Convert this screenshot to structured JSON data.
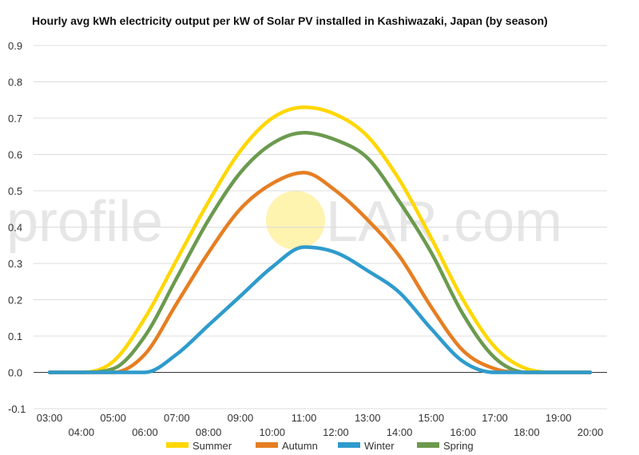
{
  "chart_data": {
    "type": "line",
    "title": "Hourly avg kWh electricity output per kW of Solar PV installed in Kashiwazaki, Japan (by season)",
    "xlabel": "",
    "ylabel": "",
    "x": [
      "03:00",
      "04:00",
      "05:00",
      "06:00",
      "07:00",
      "08:00",
      "09:00",
      "10:00",
      "11:00",
      "12:00",
      "13:00",
      "14:00",
      "15:00",
      "16:00",
      "17:00",
      "18:00",
      "19:00",
      "20:00"
    ],
    "ylim": [
      -0.1,
      0.9
    ],
    "yticks": [
      "-0.1",
      "0.0",
      "0.1",
      "0.2",
      "0.3",
      "0.4",
      "0.5",
      "0.6",
      "0.7",
      "0.8",
      "0.9"
    ],
    "grid": true,
    "legend_position": "bottom",
    "series": [
      {
        "name": "Summer",
        "color": "#FFD700",
        "values": [
          0.0,
          0.0,
          0.03,
          0.15,
          0.31,
          0.47,
          0.61,
          0.7,
          0.73,
          0.71,
          0.65,
          0.53,
          0.37,
          0.2,
          0.07,
          0.01,
          0.0,
          0.0
        ]
      },
      {
        "name": "Autumn",
        "color": "#E67E22",
        "values": [
          0.0,
          0.0,
          0.0,
          0.05,
          0.19,
          0.33,
          0.45,
          0.52,
          0.55,
          0.5,
          0.42,
          0.32,
          0.18,
          0.06,
          0.01,
          0.0,
          0.0,
          0.0
        ]
      },
      {
        "name": "Winter",
        "color": "#2E9BCC",
        "values": [
          0.0,
          0.0,
          0.0,
          0.0,
          0.05,
          0.13,
          0.21,
          0.29,
          0.345,
          0.33,
          0.28,
          0.22,
          0.12,
          0.03,
          0.0,
          0.0,
          0.0,
          0.0
        ]
      },
      {
        "name": "Spring",
        "color": "#6B9A4E",
        "values": [
          0.0,
          0.0,
          0.01,
          0.1,
          0.26,
          0.42,
          0.55,
          0.63,
          0.66,
          0.64,
          0.59,
          0.47,
          0.33,
          0.16,
          0.04,
          0.0,
          0.0,
          0.0
        ]
      }
    ]
  },
  "watermark": {
    "left": "profile",
    "right": "LAR.com",
    "sun_color": "#FFF3B0"
  }
}
